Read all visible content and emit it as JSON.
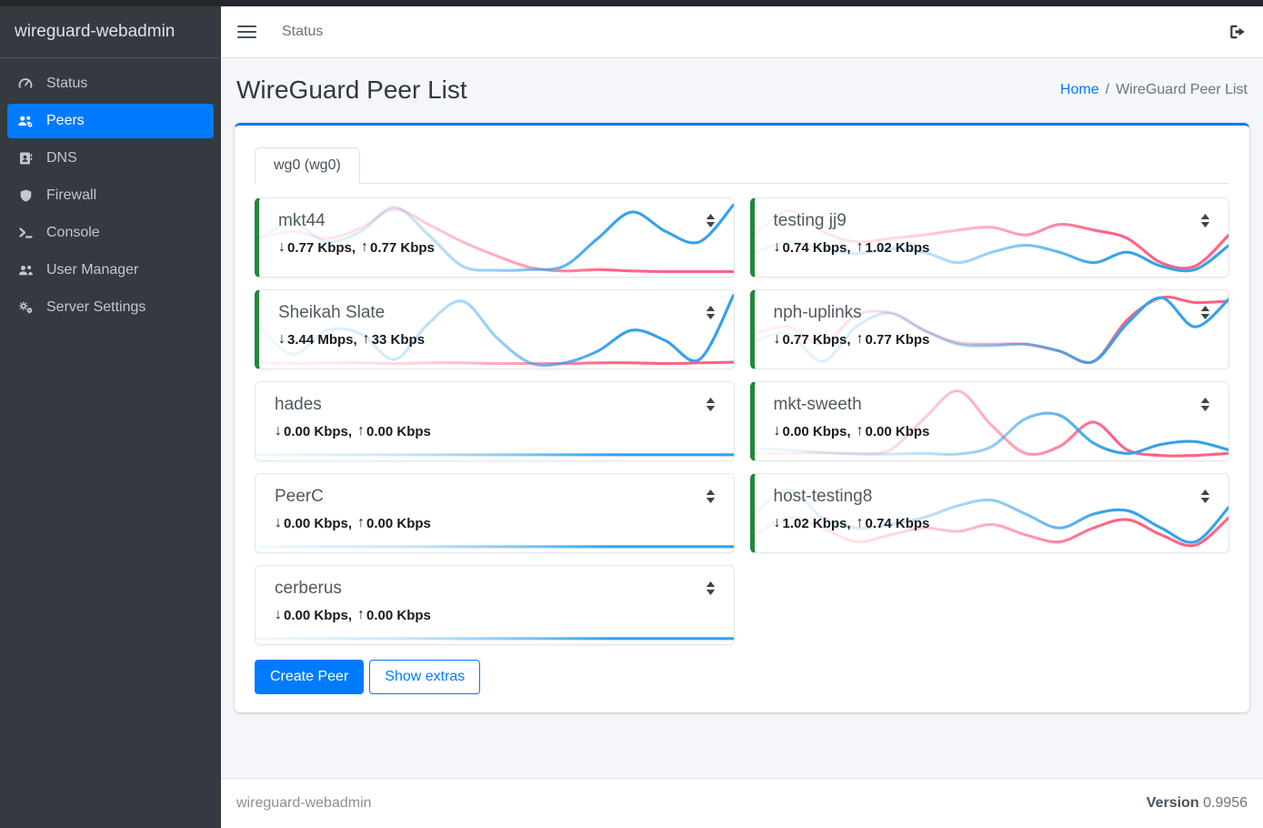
{
  "brand": "wireguard-webadmin",
  "topbar": {
    "menu_link": "Status"
  },
  "sidebar": {
    "items": [
      {
        "label": "Status",
        "icon": "gauge-icon",
        "active": false
      },
      {
        "label": "Peers",
        "icon": "users-gear-icon",
        "active": true
      },
      {
        "label": "DNS",
        "icon": "address-book-icon",
        "active": false
      },
      {
        "label": "Firewall",
        "icon": "shield-icon",
        "active": false
      },
      {
        "label": "Console",
        "icon": "terminal-icon",
        "active": false
      },
      {
        "label": "User Manager",
        "icon": "users-icon",
        "active": false
      },
      {
        "label": "Server Settings",
        "icon": "gears-icon",
        "active": false
      }
    ]
  },
  "page": {
    "title": "WireGuard Peer List",
    "breadcrumb": {
      "home": "Home",
      "separator": "/",
      "current": "WireGuard Peer List"
    }
  },
  "tabs": [
    {
      "label": "wg0 (wg0)",
      "active": true
    }
  ],
  "glyphs": {
    "down_arrow": "↓",
    "up_arrow": "↑"
  },
  "peers": [
    {
      "name": "mkt44",
      "online": true,
      "download": "0.77 Kbps,",
      "upload": "0.77 Kbps",
      "sparkline": {
        "download": [
          0.5,
          0.72,
          0.45,
          0.6,
          0.95,
          0.55,
          0.1,
          0.04,
          0.05,
          0.1,
          0.5,
          0.88,
          0.6,
          0.45,
          0.98
        ],
        "upload": [
          0.5,
          0.6,
          0.5,
          0.65,
          0.92,
          0.7,
          0.45,
          0.25,
          0.08,
          0.03,
          0.05,
          0.03,
          0.02,
          0.02,
          0.02
        ]
      }
    },
    {
      "name": "Sheikah Slate",
      "online": true,
      "download": "3.44 Mbps,",
      "upload": "33 Kbps",
      "sparkline": {
        "download": [
          0.55,
          0.15,
          0.5,
          0.45,
          0.08,
          0.6,
          0.92,
          0.4,
          0.03,
          0.03,
          0.2,
          0.5,
          0.35,
          0.08,
          1.0
        ],
        "upload": [
          0.03,
          0.02,
          0.03,
          0.03,
          0.02,
          0.03,
          0.03,
          0.02,
          0.02,
          0.02,
          0.03,
          0.03,
          0.02,
          0.03,
          0.04
        ]
      }
    },
    {
      "name": "hades",
      "online": false,
      "download": "0.00 Kbps,",
      "upload": "0.00 Kbps",
      "sparkline": {
        "download": [
          0.03,
          0.03,
          0.03,
          0.03,
          0.03,
          0.03,
          0.03,
          0.03,
          0.03,
          0.03,
          0.03,
          0.03,
          0.03,
          0.03,
          0.03
        ],
        "upload": []
      }
    },
    {
      "name": "PeerC",
      "online": false,
      "download": "0.00 Kbps,",
      "upload": "0.00 Kbps",
      "sparkline": {
        "download": [
          0.03,
          0.03,
          0.03,
          0.03,
          0.03,
          0.03,
          0.03,
          0.03,
          0.03,
          0.03,
          0.03,
          0.03,
          0.03,
          0.03,
          0.03
        ],
        "upload": []
      }
    },
    {
      "name": "cerberus",
      "online": false,
      "download": "0.00 Kbps,",
      "upload": "0.00 Kbps",
      "sparkline": {
        "download": [
          0.03,
          0.03,
          0.03,
          0.03,
          0.03,
          0.03,
          0.03,
          0.03,
          0.03,
          0.03,
          0.03,
          0.03,
          0.03,
          0.03,
          0.03
        ],
        "upload": []
      }
    },
    {
      "name": "testing jj9",
      "online": true,
      "download": "0.74 Kbps,",
      "upload": "1.02 Kbps",
      "sparkline": {
        "download": [
          0.3,
          0.45,
          0.35,
          0.28,
          0.35,
          0.3,
          0.15,
          0.3,
          0.4,
          0.3,
          0.15,
          0.3,
          0.1,
          0.05,
          0.4
        ],
        "upload": [
          0.55,
          0.9,
          0.6,
          0.45,
          0.5,
          0.55,
          0.62,
          0.66,
          0.55,
          0.7,
          0.62,
          0.5,
          0.15,
          0.1,
          0.55
        ]
      }
    },
    {
      "name": "nph-uplinks",
      "online": true,
      "download": "0.77 Kbps,",
      "upload": "0.77 Kbps",
      "sparkline": {
        "download": [
          0.35,
          0.45,
          0.05,
          0.55,
          0.75,
          0.5,
          0.3,
          0.28,
          0.3,
          0.2,
          0.05,
          0.6,
          0.97,
          0.55,
          0.95
        ],
        "upload": [
          0.45,
          0.55,
          0.3,
          0.72,
          0.75,
          0.5,
          0.32,
          0.3,
          0.3,
          0.2,
          0.05,
          0.65,
          0.97,
          0.9,
          0.92
        ]
      }
    },
    {
      "name": "mkt-sweeth",
      "online": true,
      "download": "0.00 Kbps,",
      "upload": "0.00 Kbps",
      "sparkline": {
        "download": [
          0.12,
          0.1,
          0.06,
          0.04,
          0.04,
          0.05,
          0.04,
          0.15,
          0.55,
          0.6,
          0.2,
          0.05,
          0.18,
          0.22,
          0.1
        ],
        "upload": [
          0.05,
          0.05,
          0.06,
          0.05,
          0.1,
          0.55,
          0.95,
          0.45,
          0.05,
          0.15,
          0.5,
          0.1,
          0.02,
          0.02,
          0.05
        ]
      }
    },
    {
      "name": "host-testing8",
      "online": true,
      "download": "1.02 Kbps,",
      "upload": "0.74 Kbps",
      "sparkline": {
        "download": [
          0.5,
          0.85,
          0.45,
          0.3,
          0.35,
          0.45,
          0.62,
          0.7,
          0.5,
          0.3,
          0.5,
          0.55,
          0.3,
          0.1,
          0.6
        ],
        "upload": [
          0.2,
          0.45,
          0.3,
          0.1,
          0.2,
          0.3,
          0.25,
          0.35,
          0.2,
          0.1,
          0.3,
          0.42,
          0.2,
          0.05,
          0.45
        ]
      }
    }
  ],
  "actions": {
    "create_peer": "Create Peer",
    "show_extras": "Show extras"
  },
  "footer": {
    "left": "wireguard-webadmin",
    "version_label": "Version",
    "version_value": "0.9956"
  },
  "colors": {
    "accent": "#007bff",
    "online_green": "#218838",
    "chart_download": "#36a2eb",
    "chart_upload": "#ff6384",
    "sidebar_bg": "#343a40",
    "content_bg": "#f4f6f9"
  }
}
